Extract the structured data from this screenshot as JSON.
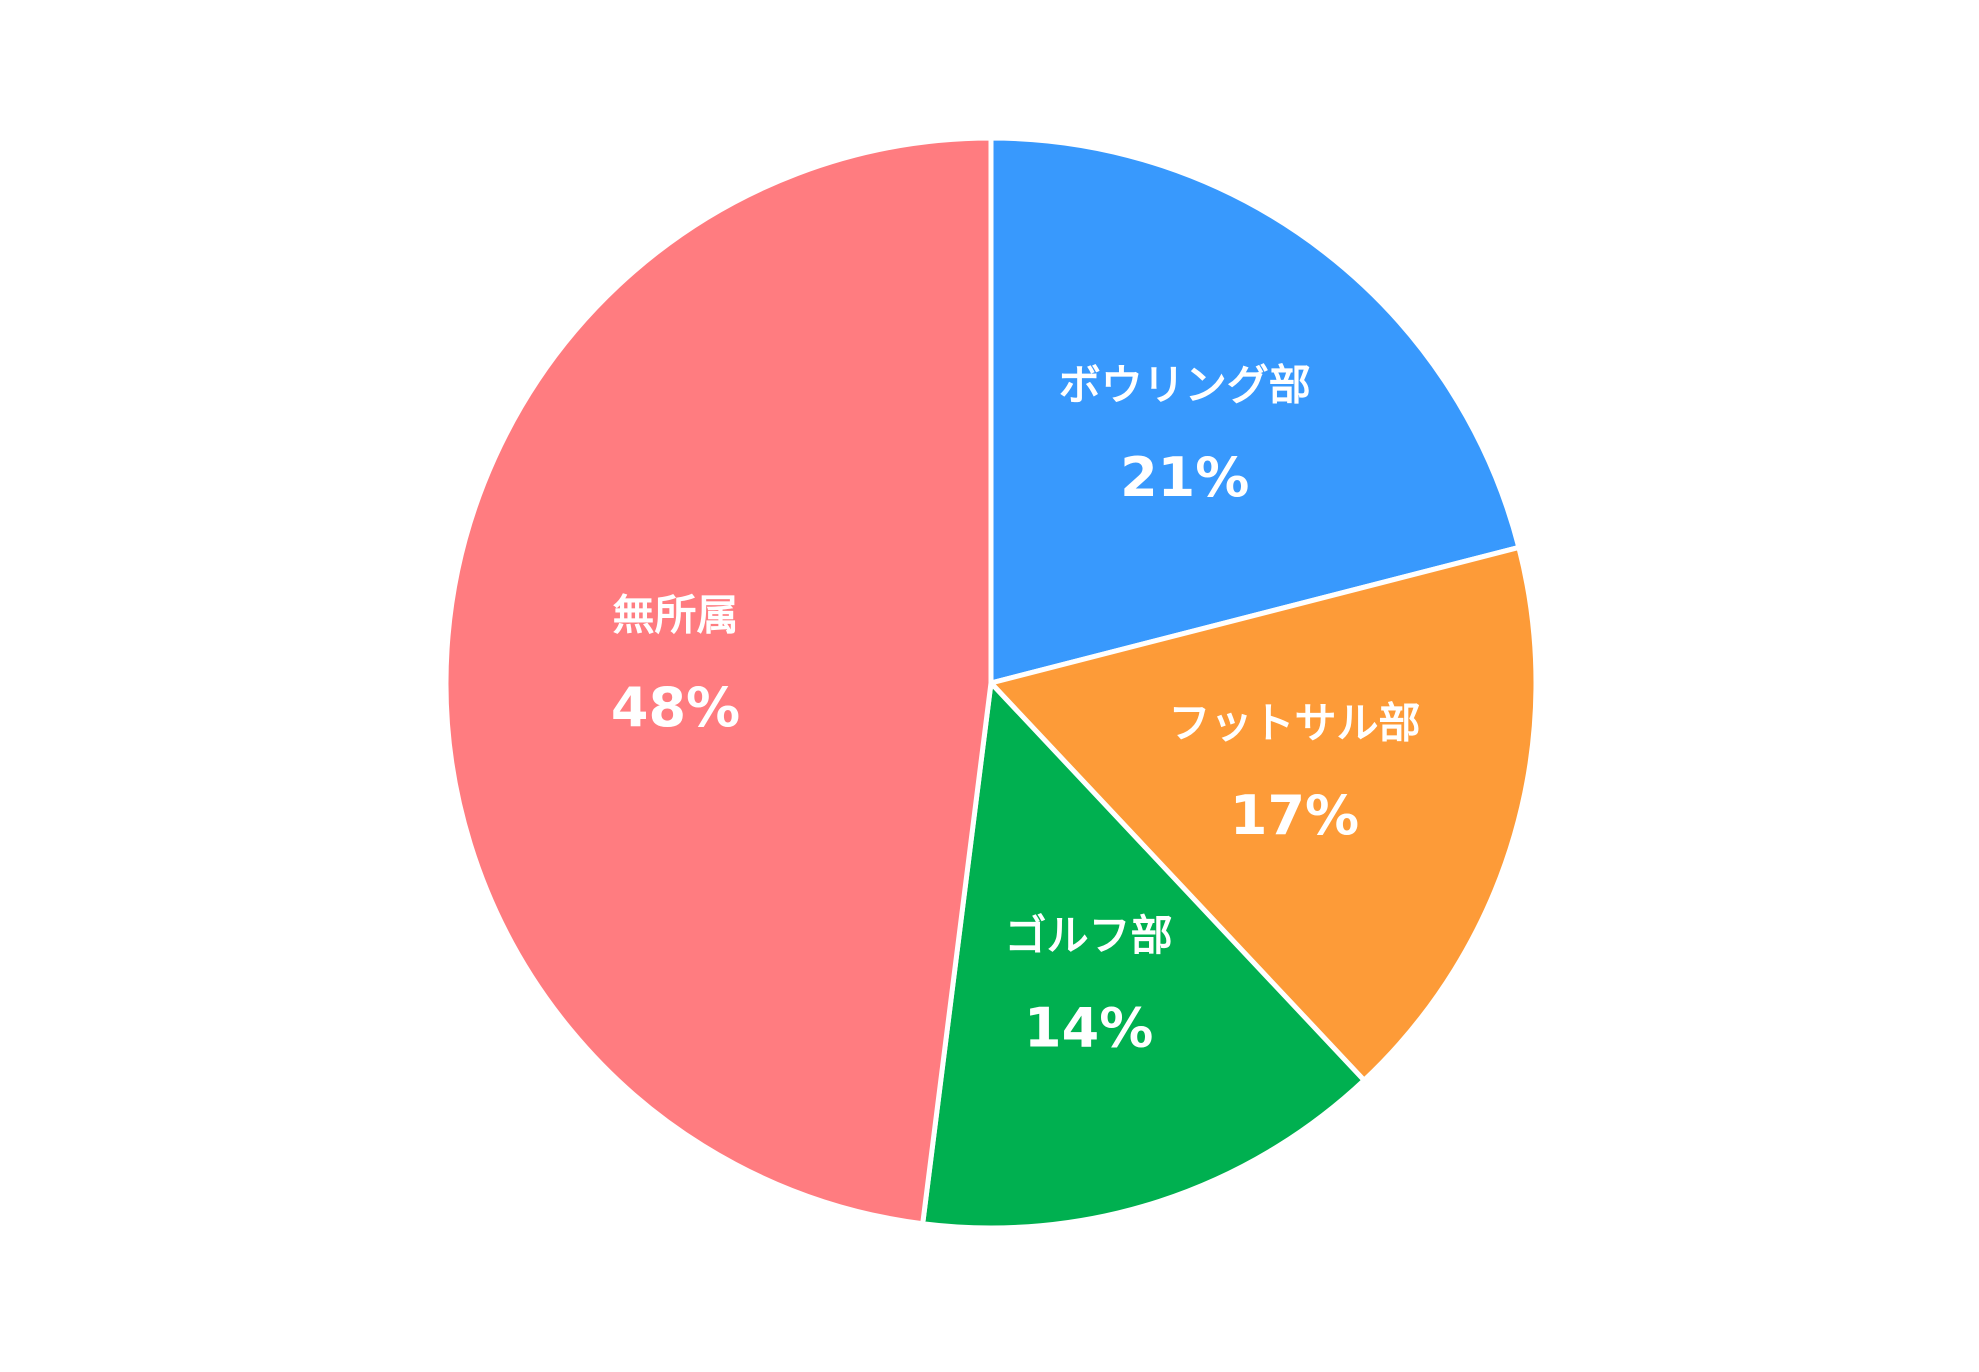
{
  "chart_data": {
    "type": "pie",
    "categories": [
      "ボウリング部",
      "フットサル部",
      "ゴルフ部",
      "無所属"
    ],
    "values": [
      21,
      17,
      14,
      48
    ],
    "value_labels": [
      "21%",
      "17%",
      "14%",
      "48%"
    ],
    "colors": [
      "#3899fd",
      "#fd9b38",
      "#00b050",
      "#ff7c80"
    ]
  }
}
